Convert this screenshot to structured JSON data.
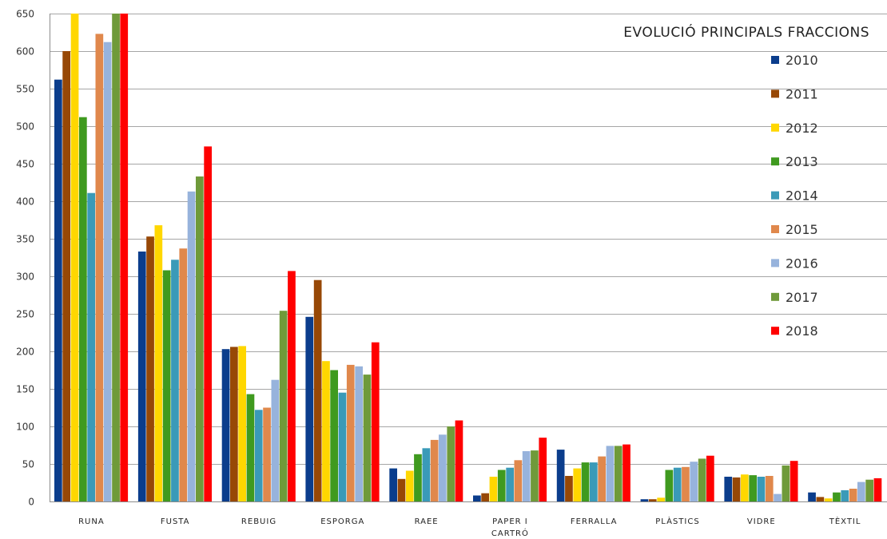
{
  "chart_data": {
    "type": "bar",
    "title": "EVOLUCIÓ PRINCIPALS FRACCIONS",
    "xlabel": "",
    "ylabel": "",
    "ylim": [
      0,
      650
    ],
    "y_ticks": [
      0,
      50,
      100,
      150,
      200,
      250,
      300,
      350,
      400,
      450,
      500,
      550,
      600,
      650
    ],
    "grid": true,
    "legend_position": "top-right",
    "categories": [
      "RUNA",
      "FUSTA",
      "REBUIG",
      "ESPORGA",
      "RAEE",
      "PAPER I CARTRÓ",
      "FERRALLA",
      "PLÀSTICS",
      "VIDRE",
      "TÈXTIL"
    ],
    "category_lines": [
      [
        "RUNA"
      ],
      [
        "FUSTA"
      ],
      [
        "REBUIG"
      ],
      [
        "ESPORGA"
      ],
      [
        "RAEE"
      ],
      [
        "PAPER I",
        "CARTRÓ"
      ],
      [
        "FERRALLA"
      ],
      [
        "PLÀSTICS"
      ],
      [
        "VIDRE"
      ],
      [
        "TÈXTIL"
      ]
    ],
    "series": [
      {
        "name": "2010",
        "color": "#0b3d8c",
        "values": [
          562,
          333,
          203,
          246,
          44,
          8,
          69,
          3,
          33,
          12
        ]
      },
      {
        "name": "2011",
        "color": "#974806",
        "values": [
          600,
          353,
          206,
          295,
          30,
          11,
          34,
          3,
          32,
          6
        ]
      },
      {
        "name": "2012",
        "color": "#ffd700",
        "values": [
          650,
          368,
          207,
          187,
          41,
          33,
          44,
          5,
          36,
          4
        ]
      },
      {
        "name": "2013",
        "color": "#3f9a1f",
        "values": [
          512,
          308,
          143,
          175,
          63,
          42,
          52,
          42,
          35,
          12
        ]
      },
      {
        "name": "2014",
        "color": "#3a9ab8",
        "values": [
          411,
          322,
          122,
          145,
          71,
          45,
          52,
          45,
          33,
          15
        ]
      },
      {
        "name": "2015",
        "color": "#e0884c",
        "values": [
          623,
          337,
          125,
          182,
          82,
          55,
          60,
          46,
          34,
          17
        ]
      },
      {
        "name": "2016",
        "color": "#97b3dc",
        "values": [
          612,
          413,
          162,
          180,
          89,
          67,
          74,
          53,
          10,
          26
        ]
      },
      {
        "name": "2017",
        "color": "#6f9a3a",
        "values": [
          650,
          433,
          254,
          169,
          100,
          68,
          74,
          57,
          48,
          29
        ]
      },
      {
        "name": "2018",
        "color": "#ff0000",
        "values": [
          650,
          473,
          307,
          212,
          108,
          85,
          76,
          61,
          54,
          31
        ]
      }
    ]
  }
}
